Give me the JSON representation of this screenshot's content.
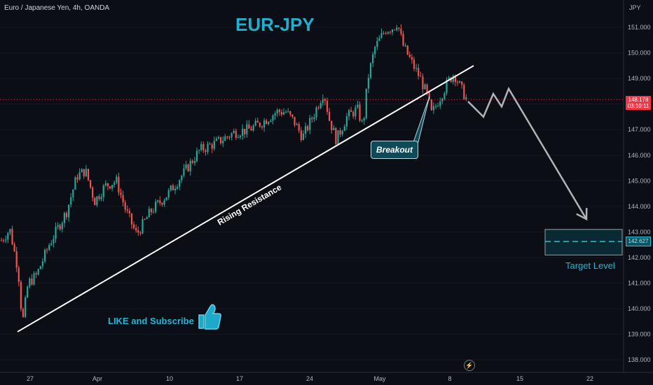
{
  "header": {
    "symbol": "Euro / Japanese Yen, 4h, OANDA",
    "currency": "JPY"
  },
  "annotations": {
    "title": "EUR-JPY",
    "trendline_label": "Rising Resistance",
    "breakout_label": "Breakout",
    "like_label": "LIKE and Subscribe",
    "target_label": "Target Level"
  },
  "current_price": {
    "value": "148.178",
    "countdown": "03:10:11"
  },
  "target_price": "142.627",
  "colors": {
    "background": "#0c0e15",
    "bull_candle": "#26a69a",
    "bear_candle": "#ef5350",
    "accent": "#1fb0cf",
    "price_line": "#f23645",
    "projection": "#b0b3b8",
    "trendline": "#ffffff"
  },
  "icons": {
    "like": "thumbs-up-icon",
    "replay": "lightning-icon"
  },
  "chart_data": {
    "type": "candlestick",
    "title": "EUR-JPY",
    "timeframe": "4h",
    "x_ticks": [
      "27",
      "Apr",
      "10",
      "17",
      "24",
      "May",
      "8",
      "15",
      "22"
    ],
    "y_ticks": [
      "151.000",
      "150.000",
      "149.000",
      "148.000",
      "147.000",
      "146.000",
      "145.000",
      "144.000",
      "143.000",
      "142.000",
      "141.000",
      "140.000",
      "139.000",
      "138.000"
    ],
    "ylim": [
      137.7,
      151.7
    ],
    "price_path": [
      [
        0,
        142.6
      ],
      [
        14,
        143.1
      ],
      [
        26,
        141.5
      ],
      [
        32,
        139.4
      ],
      [
        40,
        141.0
      ],
      [
        52,
        141.3
      ],
      [
        70,
        142.5
      ],
      [
        95,
        143.8
      ],
      [
        110,
        145.2
      ],
      [
        122,
        145.4
      ],
      [
        135,
        144.2
      ],
      [
        150,
        144.8
      ],
      [
        166,
        145.0
      ],
      [
        180,
        143.8
      ],
      [
        195,
        142.9
      ],
      [
        215,
        143.8
      ],
      [
        240,
        144.5
      ],
      [
        262,
        145.3
      ],
      [
        285,
        146.2
      ],
      [
        310,
        146.5
      ],
      [
        335,
        146.9
      ],
      [
        355,
        147.0
      ],
      [
        375,
        147.3
      ],
      [
        395,
        147.7
      ],
      [
        408,
        147.7
      ],
      [
        420,
        147.3
      ],
      [
        432,
        146.7
      ],
      [
        448,
        147.6
      ],
      [
        462,
        148.5
      ],
      [
        470,
        147.4
      ],
      [
        480,
        146.6
      ],
      [
        495,
        147.5
      ],
      [
        510,
        147.8
      ],
      [
        518,
        147.1
      ],
      [
        525,
        149.0
      ],
      [
        535,
        150.2
      ],
      [
        550,
        150.9
      ],
      [
        562,
        151.0
      ],
      [
        567,
        151.2
      ],
      [
        575,
        150.3
      ],
      [
        588,
        149.6
      ],
      [
        600,
        149.0
      ],
      [
        610,
        148.3
      ],
      [
        616,
        147.6
      ],
      [
        625,
        148.1
      ],
      [
        640,
        148.9
      ],
      [
        648,
        149.2
      ],
      [
        658,
        148.6
      ],
      [
        668,
        148.1
      ]
    ],
    "trendline": {
      "label": "Rising Resistance",
      "start": [
        25,
        139.1
      ],
      "end": [
        676,
        149.5
      ]
    },
    "breakout": {
      "label": "Breakout",
      "x": 613,
      "price": 148.3
    },
    "projection_path": [
      [
        668,
        148.1
      ],
      [
        690,
        147.5
      ],
      [
        704,
        148.4
      ],
      [
        716,
        147.9
      ],
      [
        726,
        148.6
      ],
      [
        837,
        143.5
      ]
    ],
    "target_zone": {
      "label": "Target Level",
      "price": 142.627,
      "top": 143.1,
      "bottom": 142.1
    },
    "current_price": 148.178
  }
}
